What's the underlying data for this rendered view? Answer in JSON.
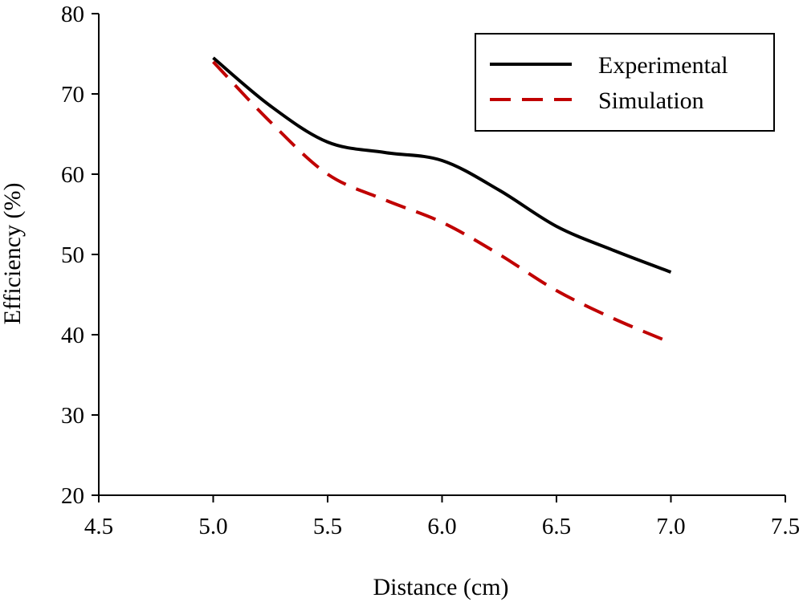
{
  "chart_data": {
    "type": "line",
    "title": "",
    "xlabel": "Distance (cm)",
    "ylabel": "Efficiency (%)",
    "xlim": [
      4.5,
      7.5
    ],
    "ylim": [
      20,
      80
    ],
    "xticks": [
      "4.5",
      "5.0",
      "5.5",
      "6.0",
      "6.5",
      "7.0",
      "7.5"
    ],
    "yticks": [
      "20",
      "30",
      "40",
      "50",
      "60",
      "70",
      "80"
    ],
    "grid": false,
    "legend_position": "top-right",
    "series": [
      {
        "name": "Experimental",
        "style": "solid",
        "color": "#000000",
        "x": [
          5.0,
          5.25,
          5.5,
          5.75,
          6.0,
          6.25,
          6.5,
          6.75,
          7.0
        ],
        "y": [
          74.5,
          68.5,
          64.0,
          62.7,
          61.7,
          58.0,
          53.5,
          50.5,
          47.8
        ]
      },
      {
        "name": "Simulation",
        "style": "dashed",
        "color": "#c00000",
        "x": [
          5.0,
          5.25,
          5.5,
          5.75,
          6.0,
          6.25,
          6.5,
          6.75,
          7.0
        ],
        "y": [
          74.0,
          66.5,
          60.0,
          56.8,
          54.0,
          50.0,
          45.5,
          42.0,
          39.0
        ]
      }
    ]
  }
}
